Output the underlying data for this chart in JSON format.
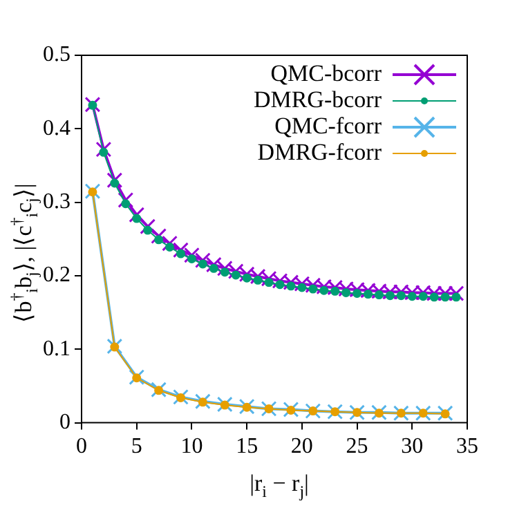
{
  "chart_data": {
    "type": "line",
    "xlabel": "|r$_{i}$ − r$_{j}$|",
    "ylabel": "⟨b$^{†}$$_{i}$b$_{j}$⟩, |⟨c$^{†}$$_{i}$c$_{j}$⟩|",
    "xlim": [
      0,
      35
    ],
    "xticks": [
      0,
      5,
      10,
      15,
      20,
      25,
      30,
      35
    ],
    "ylim": [
      0,
      0.5
    ],
    "yticks": [
      0,
      0.1,
      0.2,
      0.3,
      0.4,
      0.5
    ],
    "grid": false,
    "legend": "top right",
    "series": [
      {
        "name": "QMC-bcorr",
        "color": "#9400d3",
        "marker": "cross",
        "x": [
          1,
          2,
          3,
          4,
          5,
          6,
          7,
          8,
          9,
          10,
          11,
          12,
          13,
          14,
          15,
          16,
          17,
          18,
          19,
          20,
          21,
          22,
          23,
          24,
          25,
          26,
          27,
          28,
          29,
          30,
          31,
          32,
          33,
          34
        ],
        "values": [
          0.433,
          0.372,
          0.33,
          0.303,
          0.283,
          0.267,
          0.254,
          0.244,
          0.235,
          0.228,
          0.221,
          0.215,
          0.21,
          0.206,
          0.202,
          0.199,
          0.196,
          0.193,
          0.191,
          0.189,
          0.187,
          0.185,
          0.184,
          0.182,
          0.181,
          0.18,
          0.179,
          0.178,
          0.178,
          0.177,
          0.177,
          0.176,
          0.176,
          0.176
        ]
      },
      {
        "name": "DMRG-bcorr",
        "color": "#009e73",
        "marker": "circle",
        "x": [
          1,
          2,
          3,
          4,
          5,
          6,
          7,
          8,
          9,
          10,
          11,
          12,
          13,
          14,
          15,
          16,
          17,
          18,
          19,
          20,
          21,
          22,
          23,
          24,
          25,
          26,
          27,
          28,
          29,
          30,
          31,
          32,
          33,
          34
        ],
        "values": [
          0.432,
          0.368,
          0.326,
          0.298,
          0.278,
          0.262,
          0.249,
          0.239,
          0.23,
          0.223,
          0.216,
          0.21,
          0.205,
          0.201,
          0.197,
          0.194,
          0.191,
          0.188,
          0.186,
          0.184,
          0.182,
          0.18,
          0.179,
          0.177,
          0.176,
          0.175,
          0.174,
          0.173,
          0.173,
          0.172,
          0.172,
          0.171,
          0.171,
          0.171
        ]
      },
      {
        "name": "QMC-fcorr",
        "color": "#56b4e9",
        "marker": "cross",
        "x": [
          1,
          3,
          5,
          7,
          9,
          11,
          13,
          15,
          17,
          19,
          21,
          23,
          25,
          27,
          29,
          31,
          33
        ],
        "values": [
          0.315,
          0.104,
          0.062,
          0.045,
          0.035,
          0.029,
          0.025,
          0.022,
          0.019,
          0.018,
          0.016,
          0.015,
          0.014,
          0.014,
          0.013,
          0.013,
          0.013
        ]
      },
      {
        "name": "DMRG-fcorr",
        "color": "#e69f00",
        "marker": "circle",
        "x": [
          1,
          3,
          5,
          7,
          9,
          11,
          13,
          15,
          17,
          19,
          21,
          23,
          25,
          27,
          29,
          31,
          33
        ],
        "values": [
          0.314,
          0.103,
          0.061,
          0.044,
          0.034,
          0.028,
          0.024,
          0.021,
          0.019,
          0.017,
          0.016,
          0.015,
          0.014,
          0.013,
          0.013,
          0.013,
          0.012
        ]
      }
    ]
  }
}
